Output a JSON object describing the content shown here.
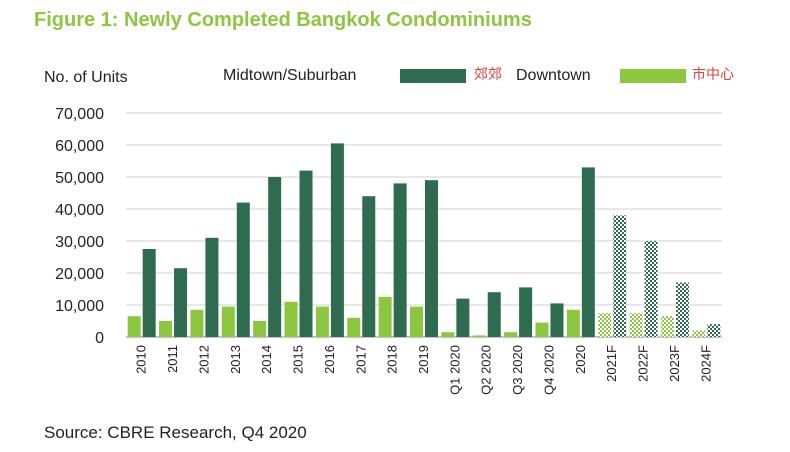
{
  "title": "Figure 1: Newly Completed Bangkok Condominiums",
  "source": "Source: CBRE Research, Q4 2020",
  "colors": {
    "suburban": "#2e6b4f",
    "downtown": "#8dc63f",
    "title": "#8dc63f",
    "annotation": "#e0403a"
  },
  "chart_data": {
    "type": "bar",
    "title": "Figure 1: Newly Completed Bangkok Condominiums",
    "xlabel": "",
    "ylabel": "No. of Units",
    "ylim": [
      0,
      70000
    ],
    "yticks": [
      "0",
      "10,000",
      "20,000",
      "30,000",
      "40,000",
      "50,000",
      "60,000",
      "70,000"
    ],
    "grid": true,
    "legend_position": "top",
    "categories": [
      "2010",
      "2011",
      "2012",
      "2013",
      "2014",
      "2015",
      "2016",
      "2017",
      "2018",
      "2019",
      "Q1 2020",
      "Q2 2020",
      "Q3 2020",
      "Q4 2020",
      "2020",
      "2021F",
      "2022F",
      "2023F",
      "2024F"
    ],
    "forecast_categories": [
      "2021F",
      "2022F",
      "2023F",
      "2024F"
    ],
    "series": [
      {
        "name": "Midtown/Suburban",
        "annotation": "郊郊",
        "values": [
          27500,
          21500,
          31000,
          42000,
          50000,
          52000,
          60500,
          44000,
          48000,
          49000,
          12000,
          14000,
          15500,
          10500,
          53000,
          38000,
          30000,
          17000,
          4000
        ]
      },
      {
        "name": "Downtown",
        "annotation": "市中心",
        "values": [
          6500,
          5000,
          8500,
          9500,
          5000,
          11000,
          9500,
          6000,
          12500,
          9500,
          1500,
          500,
          1500,
          4500,
          8500,
          7500,
          7500,
          6500,
          2000
        ]
      }
    ]
  }
}
